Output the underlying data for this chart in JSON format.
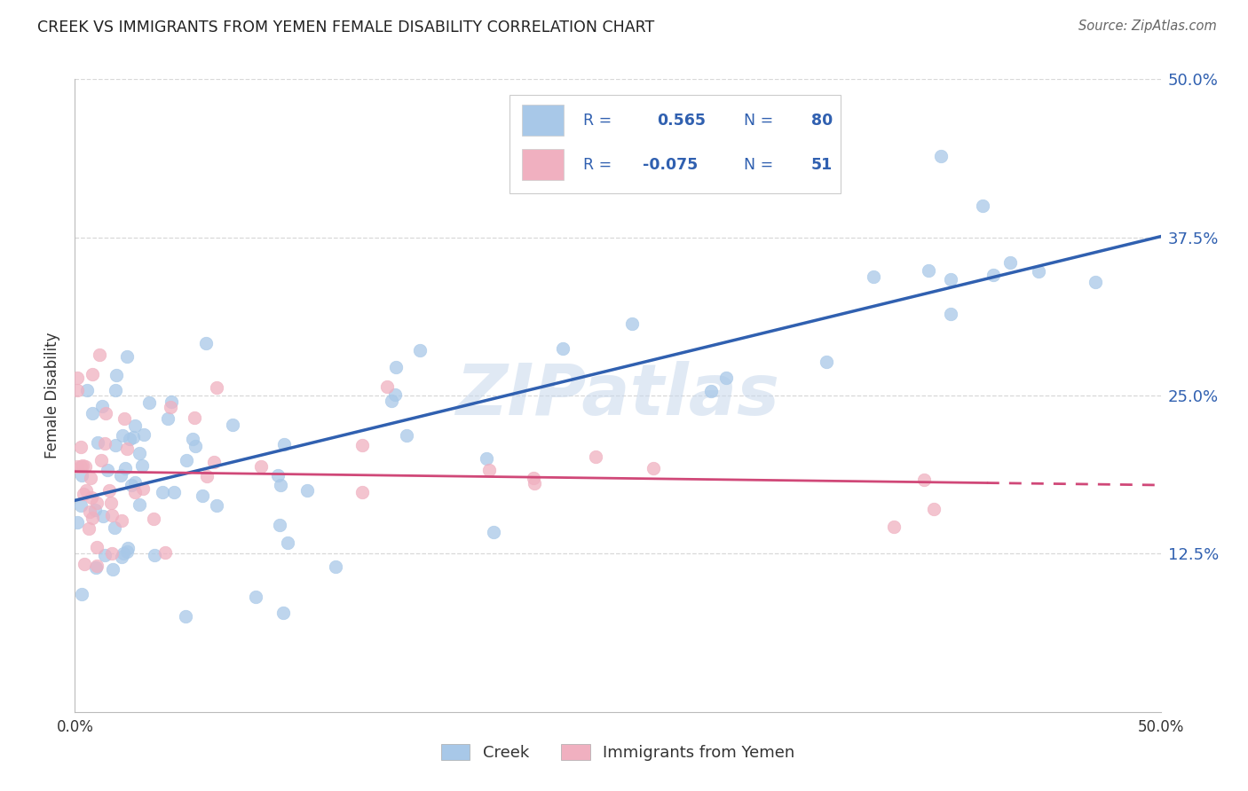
{
  "title": "CREEK VS IMMIGRANTS FROM YEMEN FEMALE DISABILITY CORRELATION CHART",
  "source_text": "Source: ZipAtlas.com",
  "ylabel": "Female Disability",
  "xlabel_creek": "Creek",
  "xlabel_yemen": "Immigrants from Yemen",
  "xlim": [
    0.0,
    0.5
  ],
  "ylim": [
    0.0,
    0.5
  ],
  "legend_r_creek": "0.565",
  "legend_n_creek": "80",
  "legend_r_yemen": "-0.075",
  "legend_n_yemen": "51",
  "creek_color": "#a8c8e8",
  "creek_line_color": "#3060b0",
  "yemen_color": "#f0b0c0",
  "yemen_line_color": "#d04878",
  "background_color": "#ffffff",
  "grid_color": "#d8d8d8",
  "title_color": "#222222",
  "right_tick_blue": "#3060b0",
  "legend_text_blue": "#3060b0",
  "watermark_color": "#c8d8ec",
  "watermark_text": "ZIPatlas"
}
